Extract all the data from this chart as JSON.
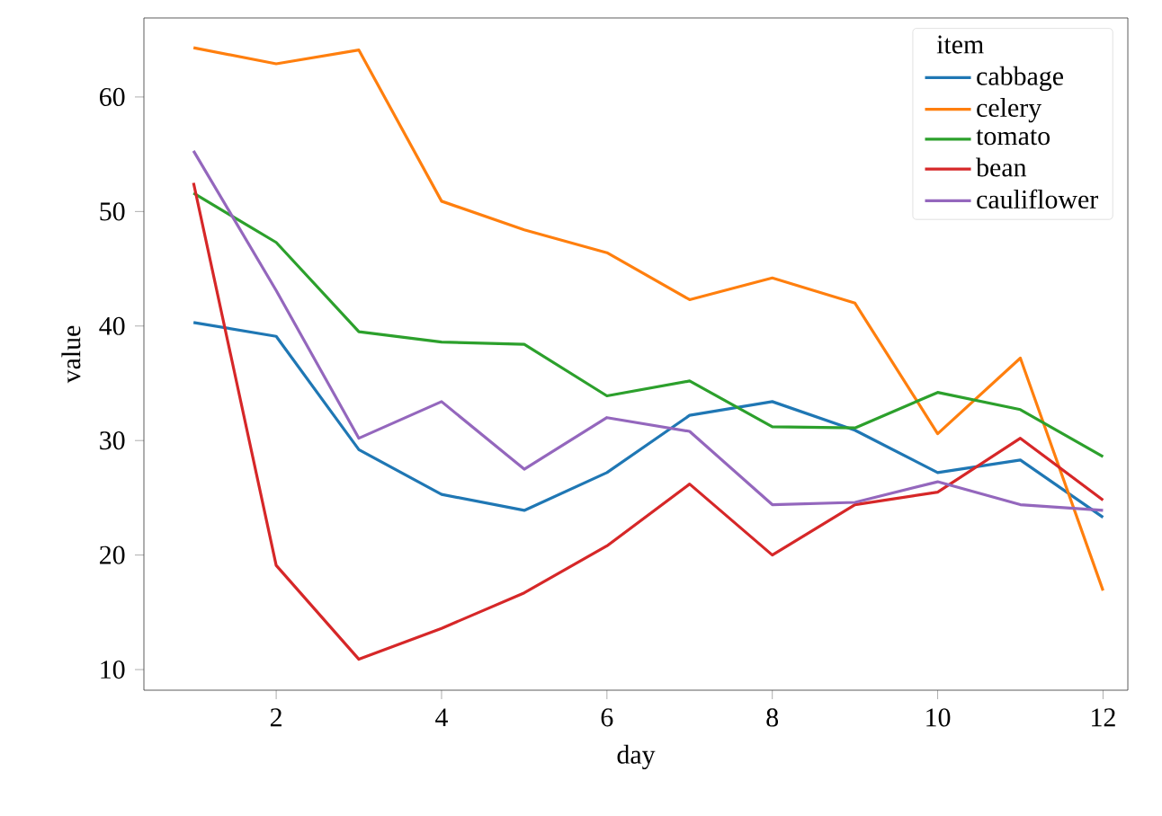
{
  "chart_data": {
    "type": "line",
    "xlabel": "day",
    "ylabel": "value",
    "legend_title": "item",
    "x": [
      1,
      2,
      3,
      4,
      5,
      6,
      7,
      8,
      9,
      10,
      11,
      12
    ],
    "xlim": [
      0.4,
      12.3
    ],
    "ylim": [
      8.2,
      66.9
    ],
    "xticks": [
      2,
      4,
      6,
      8,
      10,
      12
    ],
    "yticks": [
      10,
      20,
      30,
      40,
      50,
      60
    ],
    "legend": "top right",
    "grid": false,
    "line_style": "solid",
    "series": [
      {
        "name": "cabbage",
        "color": "#1f77b4",
        "values": [
          40.3,
          39.1,
          29.2,
          25.3,
          23.9,
          27.2,
          32.2,
          33.4,
          30.9,
          27.2,
          28.3,
          23.3
        ]
      },
      {
        "name": "celery",
        "color": "#ff7f0e",
        "values": [
          64.3,
          62.9,
          64.1,
          50.9,
          48.4,
          46.4,
          42.3,
          44.2,
          42.0,
          30.6,
          37.2,
          16.9
        ]
      },
      {
        "name": "tomato",
        "color": "#2ca02c",
        "values": [
          51.6,
          47.3,
          39.5,
          38.6,
          38.4,
          33.9,
          35.2,
          31.2,
          31.1,
          34.2,
          32.7,
          28.6
        ]
      },
      {
        "name": "bean",
        "color": "#d62728",
        "values": [
          52.5,
          19.1,
          10.9,
          13.6,
          16.7,
          20.8,
          26.2,
          20.0,
          24.4,
          25.5,
          30.2,
          24.8
        ]
      },
      {
        "name": "cauliflower",
        "color": "#9467bd",
        "values": [
          55.3,
          43.1,
          30.2,
          33.4,
          27.5,
          32.0,
          30.8,
          24.4,
          24.6,
          26.4,
          24.4,
          23.9
        ]
      }
    ]
  }
}
